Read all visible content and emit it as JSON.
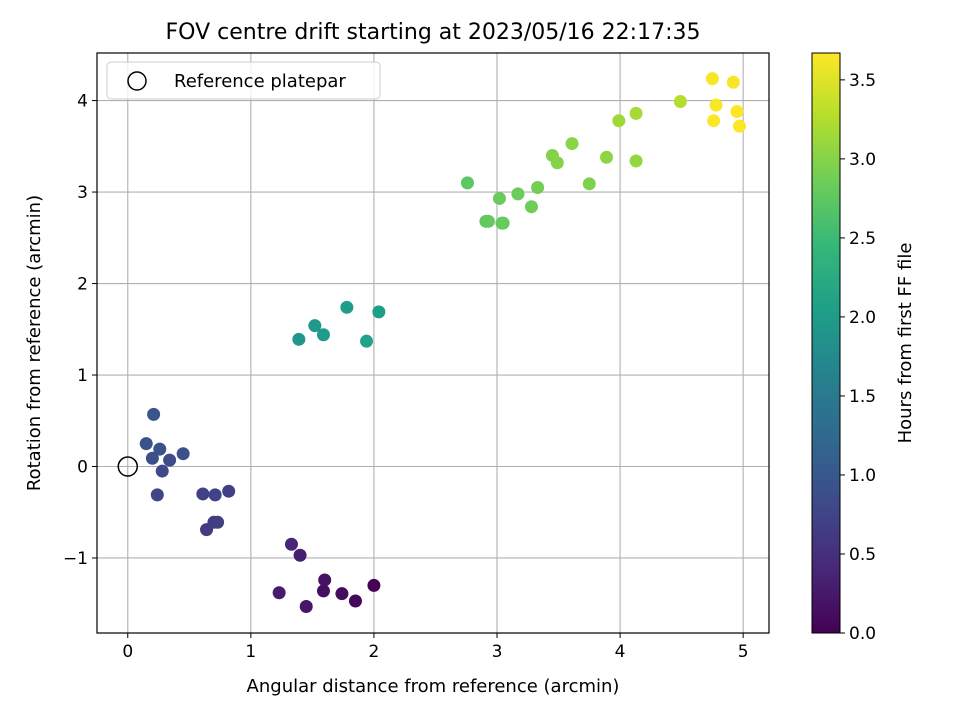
{
  "chart_data": {
    "type": "scatter",
    "title": "FOV centre drift starting at 2023/05/16 22:17:35",
    "xlabel": "Angular distance from reference (arcmin)",
    "ylabel": "Rotation from reference (arcmin)",
    "xlim": [
      -0.25,
      5.21
    ],
    "ylim": [
      -1.82,
      4.52
    ],
    "xticks": [
      0,
      1,
      2,
      3,
      4,
      5
    ],
    "yticks": [
      -1,
      0,
      1,
      2,
      3,
      4
    ],
    "xtick_labels": [
      "0",
      "1",
      "2",
      "3",
      "4",
      "5"
    ],
    "ytick_labels": [
      "−1",
      "0",
      "1",
      "2",
      "3",
      "4"
    ],
    "grid": true,
    "legend": {
      "placement": "top-left",
      "entries": [
        "Reference platepar"
      ]
    },
    "reference_point": {
      "x": 0,
      "y": 0
    },
    "colorbar": {
      "label": "Hours from first FF file",
      "colormap": "viridis",
      "range": [
        0,
        3.67
      ],
      "ticks": [
        0.0,
        0.5,
        1.0,
        1.5,
        2.0,
        2.5,
        3.0,
        3.5
      ],
      "tick_labels": [
        "0.0",
        "0.5",
        "1.0",
        "1.5",
        "2.0",
        "2.5",
        "3.0",
        "3.5"
      ]
    },
    "points": [
      {
        "x": 2.0,
        "y": -1.3,
        "h": 0.02
      },
      {
        "x": 1.85,
        "y": -1.47,
        "h": 0.06
      },
      {
        "x": 1.74,
        "y": -1.39,
        "h": 0.1
      },
      {
        "x": 1.59,
        "y": -1.36,
        "h": 0.14
      },
      {
        "x": 1.6,
        "y": -1.24,
        "h": 0.18
      },
      {
        "x": 1.45,
        "y": -1.53,
        "h": 0.22
      },
      {
        "x": 1.23,
        "y": -1.38,
        "h": 0.28
      },
      {
        "x": 1.4,
        "y": -0.97,
        "h": 0.33
      },
      {
        "x": 1.33,
        "y": -0.85,
        "h": 0.38
      },
      {
        "x": 0.64,
        "y": -0.69,
        "h": 0.62
      },
      {
        "x": 0.7,
        "y": -0.61,
        "h": 0.65
      },
      {
        "x": 0.73,
        "y": -0.61,
        "h": 0.67
      },
      {
        "x": 0.82,
        "y": -0.27,
        "h": 0.7
      },
      {
        "x": 0.61,
        "y": -0.3,
        "h": 0.72
      },
      {
        "x": 0.71,
        "y": -0.31,
        "h": 0.74
      },
      {
        "x": 0.24,
        "y": -0.31,
        "h": 0.78
      },
      {
        "x": 0.28,
        "y": -0.05,
        "h": 0.82
      },
      {
        "x": 0.34,
        "y": 0.07,
        "h": 0.85
      },
      {
        "x": 0.45,
        "y": 0.14,
        "h": 0.88
      },
      {
        "x": 0.2,
        "y": 0.09,
        "h": 0.9
      },
      {
        "x": 0.26,
        "y": 0.19,
        "h": 0.92
      },
      {
        "x": 0.15,
        "y": 0.25,
        "h": 0.94
      },
      {
        "x": 0.21,
        "y": 0.57,
        "h": 0.96
      },
      {
        "x": 1.39,
        "y": 1.39,
        "h": 1.92
      },
      {
        "x": 1.52,
        "y": 1.54,
        "h": 1.95
      },
      {
        "x": 1.59,
        "y": 1.44,
        "h": 1.98
      },
      {
        "x": 1.78,
        "y": 1.74,
        "h": 2.02
      },
      {
        "x": 2.04,
        "y": 1.69,
        "h": 2.06
      },
      {
        "x": 1.94,
        "y": 1.37,
        "h": 2.1
      },
      {
        "x": 2.76,
        "y": 3.1,
        "h": 2.74
      },
      {
        "x": 2.91,
        "y": 2.68,
        "h": 2.76
      },
      {
        "x": 2.93,
        "y": 2.68,
        "h": 2.78
      },
      {
        "x": 3.04,
        "y": 2.66,
        "h": 2.79
      },
      {
        "x": 3.05,
        "y": 2.66,
        "h": 2.8
      },
      {
        "x": 3.02,
        "y": 2.93,
        "h": 2.82
      },
      {
        "x": 3.17,
        "y": 2.98,
        "h": 2.84
      },
      {
        "x": 3.28,
        "y": 2.84,
        "h": 2.86
      },
      {
        "x": 3.33,
        "y": 3.05,
        "h": 2.88
      },
      {
        "x": 3.75,
        "y": 3.09,
        "h": 2.95
      },
      {
        "x": 3.45,
        "y": 3.4,
        "h": 2.98
      },
      {
        "x": 3.49,
        "y": 3.32,
        "h": 3.0
      },
      {
        "x": 3.61,
        "y": 3.53,
        "h": 3.02
      },
      {
        "x": 3.89,
        "y": 3.38,
        "h": 3.05
      },
      {
        "x": 4.13,
        "y": 3.34,
        "h": 3.08
      },
      {
        "x": 3.99,
        "y": 3.78,
        "h": 3.14
      },
      {
        "x": 4.13,
        "y": 3.86,
        "h": 3.18
      },
      {
        "x": 4.49,
        "y": 3.99,
        "h": 3.26
      },
      {
        "x": 4.75,
        "y": 4.24,
        "h": 3.64
      },
      {
        "x": 4.92,
        "y": 4.2,
        "h": 3.64
      },
      {
        "x": 4.78,
        "y": 3.95,
        "h": 3.65
      },
      {
        "x": 4.95,
        "y": 3.88,
        "h": 3.66
      },
      {
        "x": 4.76,
        "y": 3.78,
        "h": 3.66
      },
      {
        "x": 4.97,
        "y": 3.72,
        "h": 3.67
      }
    ]
  }
}
